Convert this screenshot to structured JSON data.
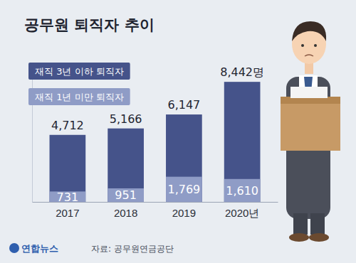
{
  "chart_data": {
    "type": "bar",
    "title": "공무원 퇴직자 추이",
    "categories": [
      "2017",
      "2018",
      "2019",
      "2020년"
    ],
    "series": [
      {
        "name": "재직 3년 이하 퇴직자",
        "color": "#45538a",
        "values": [
          4712,
          5166,
          6147,
          8442
        ],
        "value_labels": [
          "4,712",
          "5,166",
          "6,147",
          "8,442명"
        ]
      },
      {
        "name": "재직 1년 미만 퇴직자",
        "color": "#8f9cc6",
        "values": [
          731,
          951,
          1769,
          1610
        ],
        "value_labels": [
          "731",
          "951",
          "1,769",
          "1,610"
        ]
      }
    ],
    "ylim": [
      0,
      9000
    ],
    "stacked": false,
    "data_labels": true,
    "tick_labels": "x",
    "grid": false,
    "source": "자료: 공무원연금공단",
    "credit": "연합뉴스"
  }
}
